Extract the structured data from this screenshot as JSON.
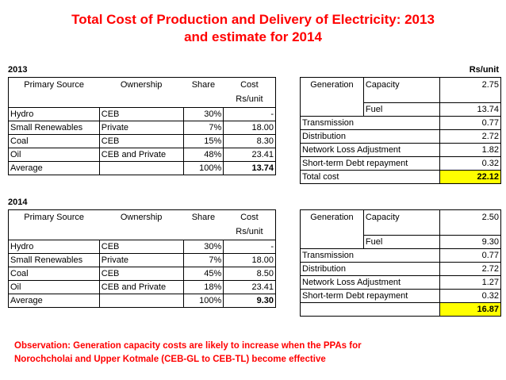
{
  "title": {
    "line1": "Total Cost of Production and Delivery of Electricity: 2013",
    "line2": "and estimate for 2014"
  },
  "unit_label": "Rs/unit",
  "headers": {
    "primary_source": "Primary Source",
    "ownership": "Ownership",
    "share": "Share",
    "cost": "Cost",
    "cost_unit": "Rs/unit",
    "generation": "Generation"
  },
  "y2013": {
    "year": "2013",
    "sources": [
      {
        "source": "Hydro",
        "ownership": "CEB",
        "share": "30%",
        "cost": "-"
      },
      {
        "source": "Small Renewables",
        "ownership": "Private",
        "share": "7%",
        "cost": "18.00"
      },
      {
        "source": "Coal",
        "ownership": "CEB",
        "share": "15%",
        "cost": "8.30"
      },
      {
        "source": "Oil",
        "ownership": "CEB and Private",
        "share": "48%",
        "cost": "23.41"
      },
      {
        "source": "Average",
        "ownership": "",
        "share": "100%",
        "cost": "13.74"
      }
    ],
    "costs": {
      "capacity_label": "Capacity",
      "capacity": "2.75",
      "fuel_label": "Fuel",
      "fuel": "13.74",
      "transmission_label": "Transmission",
      "transmission": "0.77",
      "distribution_label": "Distribution",
      "distribution": "2.72",
      "loss_label": "Network Loss Adjustment",
      "loss": "1.82",
      "debt_label": "Short-term Debt repayment",
      "debt": "0.32",
      "total_label": "Total cost",
      "total": "22.12"
    }
  },
  "y2014": {
    "year": "2014",
    "sources": [
      {
        "source": "Hydro",
        "ownership": "CEB",
        "share": "30%",
        "cost": "-"
      },
      {
        "source": "Small Renewables",
        "ownership": "Private",
        "share": "7%",
        "cost": "18.00"
      },
      {
        "source": "Coal",
        "ownership": "CEB",
        "share": "45%",
        "cost": "8.50"
      },
      {
        "source": "Oil",
        "ownership": "CEB and Private",
        "share": "18%",
        "cost": "23.41"
      },
      {
        "source": "Average",
        "ownership": "",
        "share": "100%",
        "cost": "9.30"
      }
    ],
    "costs": {
      "capacity_label": "Capacity",
      "capacity": "2.50",
      "fuel_label": "Fuel",
      "fuel": "9.30",
      "transmission_label": "Transmission",
      "transmission": "0.77",
      "distribution_label": "Distribution",
      "distribution": "2.72",
      "loss_label": "Network Loss Adjustment",
      "loss": "1.27",
      "debt_label": "Short-term Debt repayment",
      "debt": "0.32",
      "total_label": "",
      "total": "16.87"
    }
  },
  "observation": {
    "line1": "Observation: Generation capacity costs are likely to increase when the PPAs for",
    "line2": "Norochcholai and Upper Kotmale (CEB-GL to CEB-TL) become effective"
  }
}
